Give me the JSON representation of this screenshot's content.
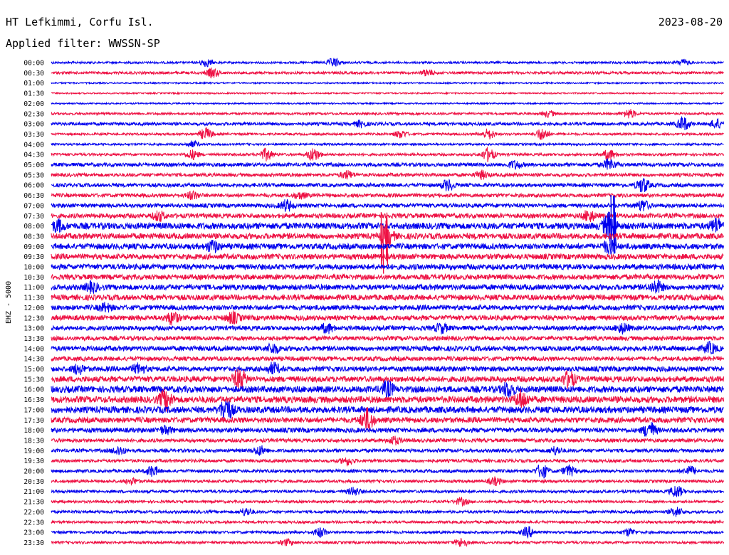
{
  "header": {
    "station": "HT Lefkimmi, Corfu Isl.",
    "date": "2023-08-20",
    "filter": "Applied filter: WWSSN-SP"
  },
  "channel_label": "EHZ - 5000",
  "colors": {
    "even_trace": "#0000ee",
    "odd_trace": "#ee1144",
    "text": "#000000"
  },
  "chart_data": {
    "type": "line",
    "title": "HT Lefkimmi, Corfu Isl.",
    "ylabel": "EHZ - 5000",
    "xlabel": "",
    "grid": false,
    "legend": "none",
    "tick_labels": [
      "00:00",
      "00:30",
      "01:00",
      "01:30",
      "02:00",
      "02:30",
      "03:00",
      "03:30",
      "04:00",
      "04:30",
      "05:00",
      "05:30",
      "06:00",
      "06:30",
      "07:00",
      "07:30",
      "08:00",
      "08:30",
      "09:00",
      "09:30",
      "10:00",
      "10:30",
      "11:00",
      "11:30",
      "12:00",
      "12:30",
      "13:00",
      "13:30",
      "14:00",
      "14:30",
      "15:00",
      "15:30",
      "16:00",
      "16:30",
      "17:00",
      "17:30",
      "18:00",
      "18:30",
      "19:00",
      "19:30",
      "20:00",
      "20:30",
      "21:00",
      "21:30",
      "22:00",
      "22:30",
      "23:00",
      "23:30"
    ],
    "trace_noise": [
      1.5,
      1.8,
      1.0,
      1.0,
      1.0,
      1.6,
      2.2,
      1.6,
      1.5,
      1.8,
      2.6,
      2.4,
      2.6,
      2.6,
      2.8,
      3.2,
      4.5,
      4.0,
      4.0,
      3.8,
      3.8,
      3.6,
      3.8,
      3.8,
      3.5,
      3.5,
      3.2,
      3.0,
      3.4,
      3.0,
      3.5,
      4.0,
      4.5,
      4.5,
      4.5,
      3.8,
      3.2,
      2.5,
      2.4,
      2.2,
      2.2,
      2.0,
      2.0,
      1.8,
      2.0,
      1.8,
      1.8,
      1.8
    ],
    "events": [
      {
        "row": 0,
        "x": 0.23,
        "amp": 5
      },
      {
        "row": 0,
        "x": 0.42,
        "amp": 6
      },
      {
        "row": 0,
        "x": 0.94,
        "amp": 4
      },
      {
        "row": 1,
        "x": 0.24,
        "amp": 6
      },
      {
        "row": 1,
        "x": 0.56,
        "amp": 4
      },
      {
        "row": 5,
        "x": 0.74,
        "amp": 4
      },
      {
        "row": 5,
        "x": 0.86,
        "amp": 6
      },
      {
        "row": 6,
        "x": 0.46,
        "amp": 4
      },
      {
        "row": 6,
        "x": 0.94,
        "amp": 9
      },
      {
        "row": 6,
        "x": 0.99,
        "amp": 6
      },
      {
        "row": 7,
        "x": 0.23,
        "amp": 8
      },
      {
        "row": 7,
        "x": 0.52,
        "amp": 5
      },
      {
        "row": 7,
        "x": 0.65,
        "amp": 7
      },
      {
        "row": 7,
        "x": 0.73,
        "amp": 8
      },
      {
        "row": 8,
        "x": 0.21,
        "amp": 4
      },
      {
        "row": 9,
        "x": 0.21,
        "amp": 6
      },
      {
        "row": 9,
        "x": 0.32,
        "amp": 8
      },
      {
        "row": 9,
        "x": 0.39,
        "amp": 9
      },
      {
        "row": 9,
        "x": 0.65,
        "amp": 9
      },
      {
        "row": 9,
        "x": 0.83,
        "amp": 7
      },
      {
        "row": 10,
        "x": 0.69,
        "amp": 5
      },
      {
        "row": 10,
        "x": 0.83,
        "amp": 7
      },
      {
        "row": 11,
        "x": 0.44,
        "amp": 5
      },
      {
        "row": 11,
        "x": 0.64,
        "amp": 5
      },
      {
        "row": 12,
        "x": 0.59,
        "amp": 7
      },
      {
        "row": 12,
        "x": 0.88,
        "amp": 10
      },
      {
        "row": 13,
        "x": 0.21,
        "amp": 5
      },
      {
        "row": 13,
        "x": 0.37,
        "amp": 4
      },
      {
        "row": 14,
        "x": 0.35,
        "amp": 7
      },
      {
        "row": 14,
        "x": 0.88,
        "amp": 7
      },
      {
        "row": 15,
        "x": 0.16,
        "amp": 6
      },
      {
        "row": 15,
        "x": 0.8,
        "amp": 7
      },
      {
        "row": 16,
        "x": 0.01,
        "amp": 7
      },
      {
        "row": 16,
        "x": 0.83,
        "amp": 18
      },
      {
        "row": 16,
        "x": 0.99,
        "amp": 9
      },
      {
        "row": 17,
        "x": 0.5,
        "amp": 12
      },
      {
        "row": 18,
        "x": 0.24,
        "amp": 7
      },
      {
        "row": 18,
        "x": 0.83,
        "amp": 8
      },
      {
        "row": 22,
        "x": 0.06,
        "amp": 6
      },
      {
        "row": 22,
        "x": 0.9,
        "amp": 8
      },
      {
        "row": 24,
        "x": 0.08,
        "amp": 5
      },
      {
        "row": 25,
        "x": 0.18,
        "amp": 8
      },
      {
        "row": 25,
        "x": 0.27,
        "amp": 7
      },
      {
        "row": 26,
        "x": 0.41,
        "amp": 6
      },
      {
        "row": 26,
        "x": 0.58,
        "amp": 6
      },
      {
        "row": 26,
        "x": 0.85,
        "amp": 6
      },
      {
        "row": 28,
        "x": 0.33,
        "amp": 6
      },
      {
        "row": 28,
        "x": 0.98,
        "amp": 7
      },
      {
        "row": 30,
        "x": 0.04,
        "amp": 6
      },
      {
        "row": 30,
        "x": 0.13,
        "amp": 6
      },
      {
        "row": 30,
        "x": 0.33,
        "amp": 7
      },
      {
        "row": 31,
        "x": 0.28,
        "amp": 14
      },
      {
        "row": 31,
        "x": 0.77,
        "amp": 11
      },
      {
        "row": 32,
        "x": 0.5,
        "amp": 10
      },
      {
        "row": 32,
        "x": 0.68,
        "amp": 9
      },
      {
        "row": 33,
        "x": 0.17,
        "amp": 13
      },
      {
        "row": 33,
        "x": 0.7,
        "amp": 11
      },
      {
        "row": 34,
        "x": 0.26,
        "amp": 15
      },
      {
        "row": 35,
        "x": 0.47,
        "amp": 15
      },
      {
        "row": 36,
        "x": 0.17,
        "amp": 5
      },
      {
        "row": 36,
        "x": 0.89,
        "amp": 11
      },
      {
        "row": 37,
        "x": 0.51,
        "amp": 5
      },
      {
        "row": 38,
        "x": 0.1,
        "amp": 6
      },
      {
        "row": 38,
        "x": 0.31,
        "amp": 6
      },
      {
        "row": 38,
        "x": 0.75,
        "amp": 5
      },
      {
        "row": 39,
        "x": 0.44,
        "amp": 5
      },
      {
        "row": 40,
        "x": 0.15,
        "amp": 7
      },
      {
        "row": 40,
        "x": 0.73,
        "amp": 9
      },
      {
        "row": 40,
        "x": 0.77,
        "amp": 7
      },
      {
        "row": 40,
        "x": 0.95,
        "amp": 6
      },
      {
        "row": 41,
        "x": 0.12,
        "amp": 4
      },
      {
        "row": 41,
        "x": 0.66,
        "amp": 5
      },
      {
        "row": 42,
        "x": 0.45,
        "amp": 5
      },
      {
        "row": 42,
        "x": 0.93,
        "amp": 8
      },
      {
        "row": 43,
        "x": 0.61,
        "amp": 5
      },
      {
        "row": 44,
        "x": 0.29,
        "amp": 5
      },
      {
        "row": 44,
        "x": 0.93,
        "amp": 6
      },
      {
        "row": 46,
        "x": 0.4,
        "amp": 6
      },
      {
        "row": 46,
        "x": 0.71,
        "amp": 7
      },
      {
        "row": 46,
        "x": 0.86,
        "amp": 5
      },
      {
        "row": 47,
        "x": 0.35,
        "amp": 4
      },
      {
        "row": 47,
        "x": 0.61,
        "amp": 6
      }
    ],
    "spikes": [
      {
        "row": 17,
        "x": 0.495,
        "up": 35,
        "down": 55
      },
      {
        "row": 16,
        "x": 0.836,
        "up": 45,
        "down": 40
      }
    ]
  }
}
